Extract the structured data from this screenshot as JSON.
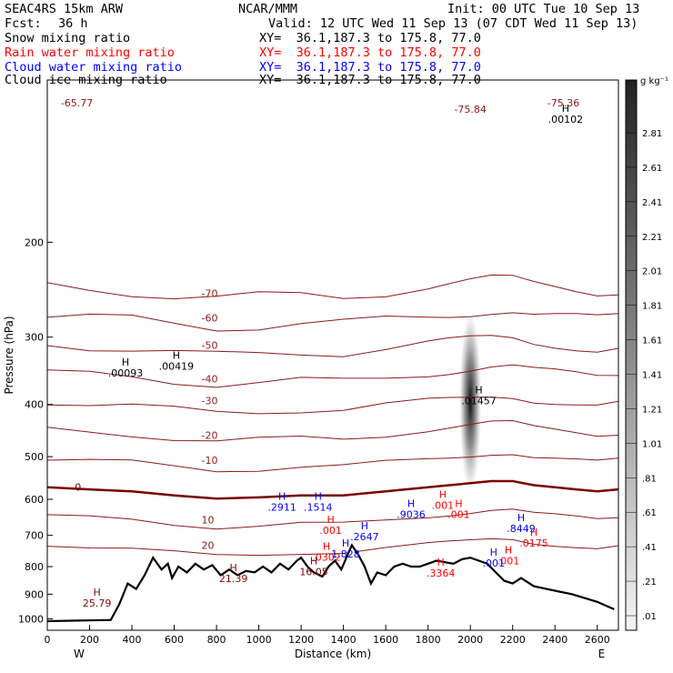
{
  "header": {
    "model": "SEAC4RS 15km ARW",
    "source": "NCAR/MMM",
    "init": "Init: 00 UTC Tue 10 Sep 13",
    "fcst_label": "Fcst:",
    "fcst_value": "36 h",
    "valid": "Valid: 12 UTC Wed 11 Sep 13 (07 CDT Wed 11 Sep 13)"
  },
  "legend": [
    {
      "name": "Snow mixing ratio",
      "xy": "XY=  36.1,187.3 to 175.8, 77.0",
      "color": "#000000"
    },
    {
      "name": "Rain water mixing ratio",
      "xy": "XY=  36.1,187.3 to 175.8, 77.0",
      "color": "#ff0000"
    },
    {
      "name": "Cloud water mixing ratio",
      "xy": "XY=  36.1,187.3 to 175.8, 77.0",
      "color": "#0000ff"
    },
    {
      "name": "Cloud ice mixing ratio",
      "xy": "XY=  36.1,187.3 to 175.8, 77.0",
      "color": "#000000"
    }
  ],
  "colorbar": {
    "unit": "g kg⁻¹",
    "labels": [
      "2.81",
      "2.61",
      "2.41",
      "2.21",
      "2.01",
      "1.81",
      "1.61",
      "1.41",
      "1.21",
      "1.01",
      ".81",
      ".61",
      ".41",
      ".21",
      ".01"
    ]
  },
  "chart_data": {
    "type": "cross-section",
    "xlabel": "Distance (km)",
    "ylabel": "Pressure (hPa)",
    "xlim": [
      0,
      2700
    ],
    "ylim": [
      1050,
      100
    ],
    "y_scale": "log",
    "x_ticks": [
      0,
      200,
      400,
      600,
      800,
      1000,
      1200,
      1400,
      1600,
      1800,
      2000,
      2200,
      2400,
      2600
    ],
    "y_ticks": [
      200,
      300,
      400,
      500,
      600,
      700,
      800,
      900,
      1000
    ],
    "x_ends": {
      "left": "W",
      "right": "E"
    },
    "temperature_contours_C": [
      20,
      10,
      0,
      -10,
      -20,
      -30,
      -40,
      -50,
      -60,
      -70
    ],
    "terrain": [
      [
        0,
        1010
      ],
      [
        300,
        1005
      ],
      [
        340,
        940
      ],
      [
        380,
        860
      ],
      [
        420,
        880
      ],
      [
        460,
        830
      ],
      [
        500,
        770
      ],
      [
        540,
        810
      ],
      [
        570,
        790
      ],
      [
        590,
        840
      ],
      [
        620,
        800
      ],
      [
        660,
        820
      ],
      [
        700,
        790
      ],
      [
        740,
        810
      ],
      [
        780,
        795
      ],
      [
        820,
        830
      ],
      [
        860,
        810
      ],
      [
        900,
        830
      ],
      [
        940,
        815
      ],
      [
        980,
        820
      ],
      [
        1020,
        800
      ],
      [
        1060,
        820
      ],
      [
        1100,
        790
      ],
      [
        1140,
        810
      ],
      [
        1180,
        780
      ],
      [
        1200,
        770
      ],
      [
        1230,
        800
      ],
      [
        1260,
        820
      ],
      [
        1300,
        835
      ],
      [
        1330,
        800
      ],
      [
        1360,
        780
      ],
      [
        1390,
        810
      ],
      [
        1420,
        760
      ],
      [
        1440,
        730
      ],
      [
        1470,
        760
      ],
      [
        1500,
        800
      ],
      [
        1530,
        860
      ],
      [
        1560,
        820
      ],
      [
        1600,
        830
      ],
      [
        1640,
        800
      ],
      [
        1680,
        790
      ],
      [
        1720,
        800
      ],
      [
        1760,
        800
      ],
      [
        1800,
        790
      ],
      [
        1840,
        780
      ],
      [
        1880,
        785
      ],
      [
        1920,
        790
      ],
      [
        1960,
        775
      ],
      [
        2000,
        770
      ],
      [
        2040,
        780
      ],
      [
        2080,
        790
      ],
      [
        2120,
        820
      ],
      [
        2160,
        850
      ],
      [
        2200,
        860
      ],
      [
        2240,
        840
      ],
      [
        2300,
        870
      ],
      [
        2360,
        880
      ],
      [
        2420,
        890
      ],
      [
        2480,
        900
      ],
      [
        2540,
        915
      ],
      [
        2600,
        930
      ],
      [
        2640,
        945
      ],
      [
        2680,
        960
      ]
    ],
    "zero_isotherm": [
      [
        0,
        570
      ],
      [
        200,
        575
      ],
      [
        400,
        580
      ],
      [
        600,
        590
      ],
      [
        800,
        598
      ],
      [
        1000,
        595
      ],
      [
        1200,
        590
      ],
      [
        1400,
        590
      ],
      [
        1600,
        580
      ],
      [
        1800,
        570
      ],
      [
        1900,
        565
      ],
      [
        2000,
        560
      ],
      [
        2100,
        555
      ],
      [
        2200,
        555
      ],
      [
        2300,
        565
      ],
      [
        2400,
        570
      ],
      [
        2500,
        575
      ],
      [
        2600,
        580
      ],
      [
        2700,
        575
      ]
    ],
    "highs": [
      {
        "x": 1110,
        "p": 630,
        "label": ".2911",
        "color": "#0000ff"
      },
      {
        "x": 1280,
        "p": 630,
        "label": ".1514",
        "color": "#0000ff"
      },
      {
        "x": 1340,
        "p": 695,
        "label": ".001",
        "color": "#ff0000"
      },
      {
        "x": 1500,
        "p": 715,
        "label": ".2647",
        "color": "#0000ff"
      },
      {
        "x": 1720,
        "p": 650,
        "label": ".9036",
        "color": "#0000ff"
      },
      {
        "x": 1870,
        "p": 625,
        "label": ".001",
        "color": "#ff0000"
      },
      {
        "x": 1945,
        "p": 650,
        "label": ".001",
        "color": "#ff0000"
      },
      {
        "x": 2240,
        "p": 690,
        "label": ".8449",
        "color": "#0000ff"
      },
      {
        "x": 2300,
        "p": 735,
        "label": ".0175",
        "color": "#ff0000"
      },
      {
        "x": 2180,
        "p": 792,
        "label": ".001",
        "color": "#ff0000"
      },
      {
        "x": 2110,
        "p": 800,
        "label": ".001",
        "color": "#0000ff"
      },
      {
        "x": 1320,
        "p": 780,
        "label": ".0302",
        "color": "#ff0000"
      },
      {
        "x": 1410,
        "p": 770,
        "label": "1.828",
        "color": "#0000ff"
      },
      {
        "x": 1860,
        "p": 835,
        "label": ".3364",
        "color": "#ff0000"
      },
      {
        "x": 2040,
        "p": 400,
        "label": ".01457",
        "color": "#000000"
      },
      {
        "x": 370,
        "p": 355,
        "label": ".00093",
        "color": "#000000"
      },
      {
        "x": 610,
        "p": 345,
        "label": ".00419",
        "color": "#000000"
      },
      {
        "x": 1260,
        "p": 830,
        "label": "16.05",
        "color": "#8b0000"
      },
      {
        "x": 880,
        "p": 855,
        "label": "21.39",
        "color": "#8b0000"
      },
      {
        "x": 235,
        "p": 950,
        "label": "25.79",
        "color": "#8b0000"
      },
      {
        "x": 2450,
        "p": 120,
        "label": ".00102",
        "color": "#000000"
      }
    ],
    "corner_labels": [
      {
        "x": 140,
        "p": 112,
        "label": "-65.77"
      },
      {
        "x": 2000,
        "p": 115,
        "label": "-75.84"
      },
      {
        "x": 2440,
        "p": 112,
        "label": "-75.36"
      }
    ],
    "shaded_column": {
      "x": 2000,
      "p_top": 270,
      "p_bottom": 580,
      "peak": 2.8
    }
  }
}
